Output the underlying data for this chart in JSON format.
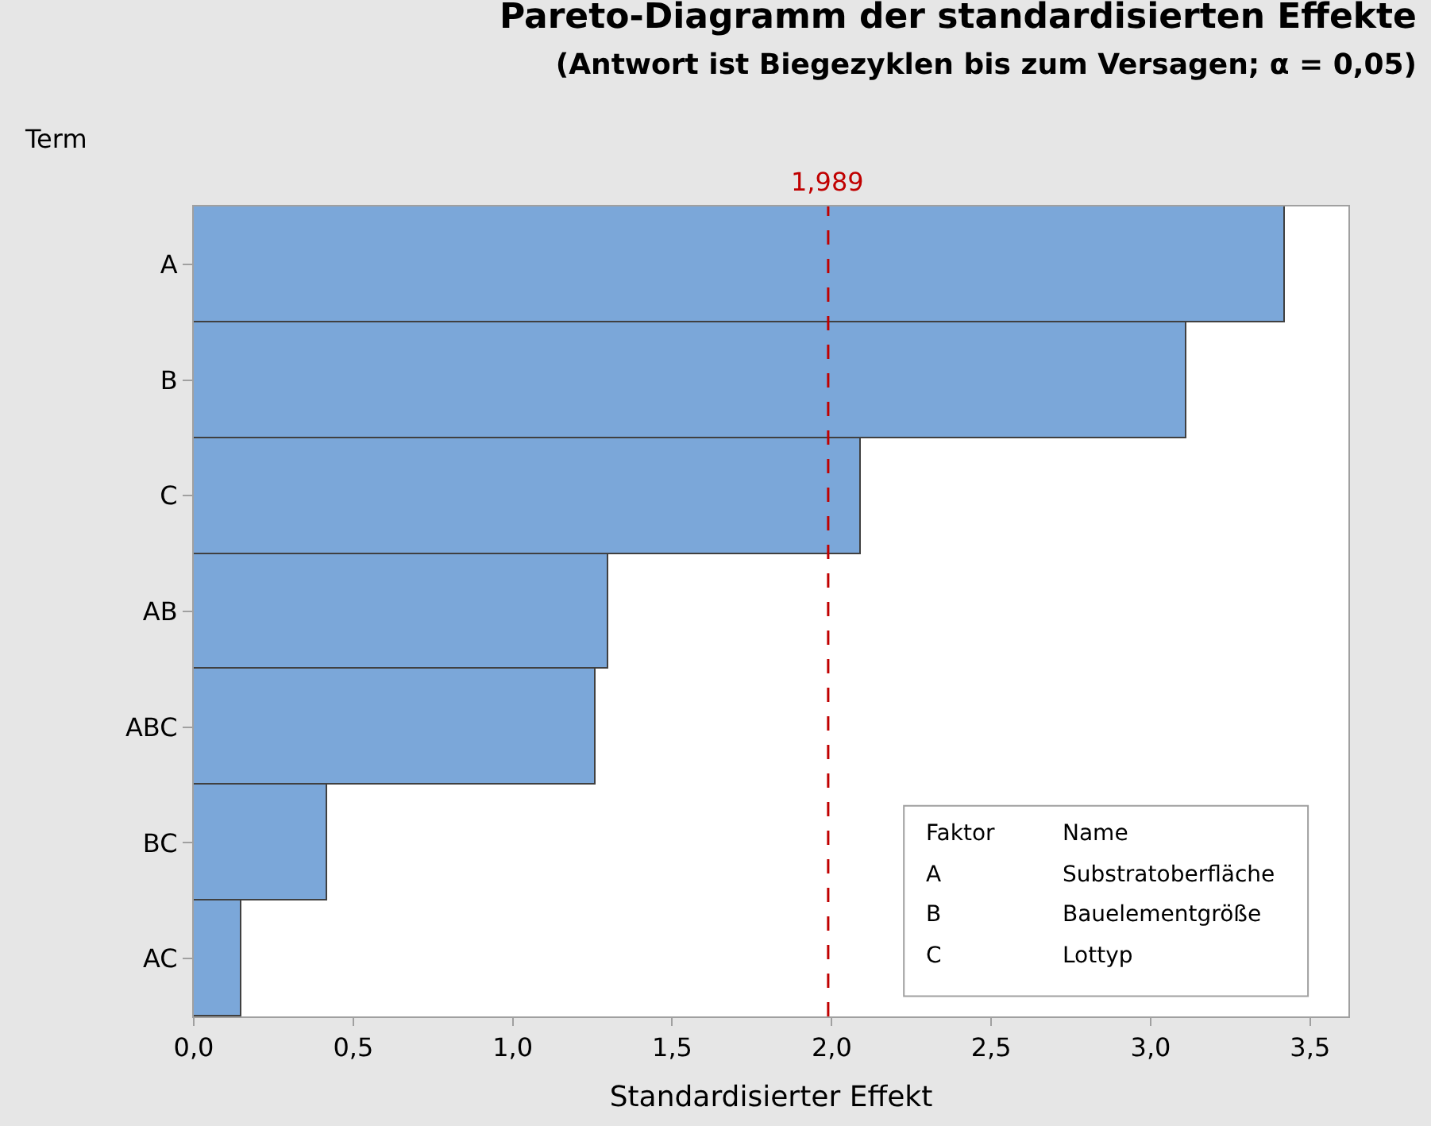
{
  "chart_data": {
    "type": "bar",
    "orientation": "horizontal",
    "title": "Pareto-Diagramm der standardisierten Effekte",
    "subtitle": "(Antwort ist Biegezyklen bis zum Versagen; α = 0,05)",
    "xlabel": "Standardisierter Effekt",
    "ylabel": "Term",
    "categories": [
      "A",
      "B",
      "C",
      "AB",
      "ABC",
      "BC",
      "AC"
    ],
    "values": [
      3.42,
      3.11,
      2.09,
      1.3,
      1.26,
      0.42,
      0.15
    ],
    "color": "#7ba7d9",
    "xlim": [
      0,
      3.62
    ],
    "xticks": [
      {
        "value": 0,
        "label": "0,0"
      },
      {
        "value": 0.5,
        "label": "0,5"
      },
      {
        "value": 1,
        "label": "1,0"
      },
      {
        "value": 1.5,
        "label": "1,5"
      },
      {
        "value": 2,
        "label": "2,0"
      },
      {
        "value": 2.5,
        "label": "2,5"
      },
      {
        "value": 3,
        "label": "3,0"
      },
      {
        "value": 3.5,
        "label": "3,5"
      }
    ],
    "ref_lines": [
      {
        "axis": "x",
        "value": 1.989,
        "label": "1,989",
        "color": "#c00000",
        "line_style": "dashed"
      }
    ],
    "annotations": [
      "Faktor",
      "Name",
      "A",
      "Substratoberfläche",
      "B",
      "Bauelementgröße",
      "C",
      "Lottyp"
    ],
    "legend": false
  }
}
